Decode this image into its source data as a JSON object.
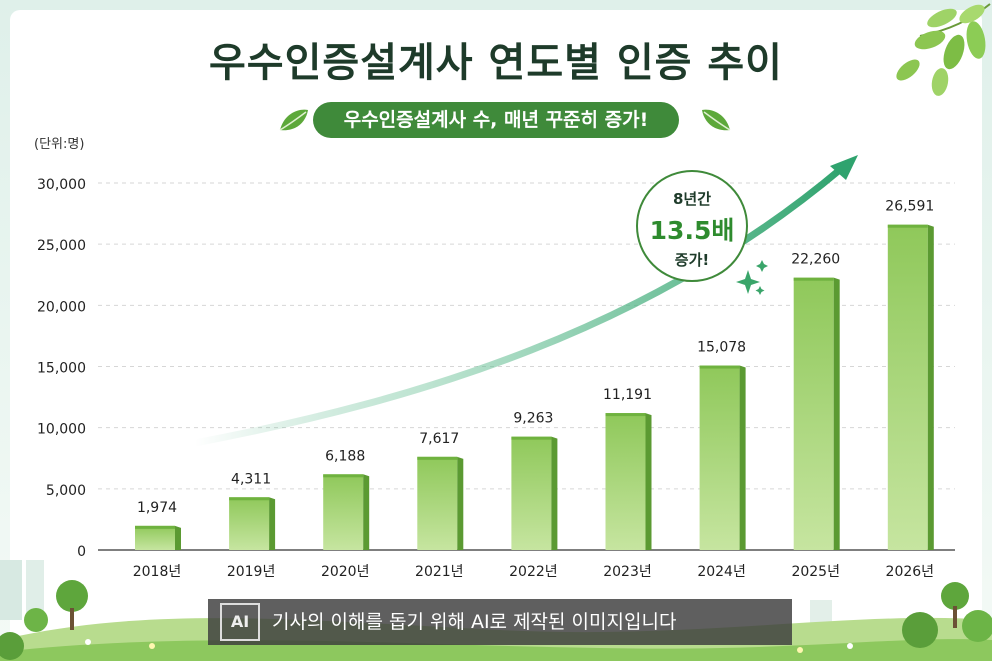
{
  "header": {
    "title": "우수인증설계사 연도별 인증 추이",
    "subtitle": "우수인증설계사 수, 매년 꾸준히 증가!"
  },
  "unit_label": "(단위:명)",
  "badge": {
    "line1": "8년간",
    "line2": "13.5배",
    "line3": "증가!"
  },
  "disclaimer": {
    "ai_mark": "AI",
    "text": "기사의 이해를 돕기 위해 AI로 제작된 이미지입니다"
  },
  "colors": {
    "bar_light": "#b6dc86",
    "bar_dark": "#6fb23f",
    "bar_side": "#5b9a32",
    "arrow": "#2fa36e",
    "title": "#1e3b2a",
    "pill": "#3f8a3a"
  },
  "chart_data": {
    "type": "bar",
    "categories": [
      "2018년",
      "2019년",
      "2020년",
      "2021년",
      "2022년",
      "2023년",
      "2024년",
      "2025년",
      "2026년"
    ],
    "values": [
      1974,
      4311,
      6188,
      7617,
      9263,
      11191,
      15078,
      22260,
      26591
    ],
    "value_labels": [
      "1,974",
      "4,311",
      "6,188",
      "7,617",
      "9,263",
      "11,191",
      "15,078",
      "22,260",
      "26,591"
    ],
    "yticks": [
      "0",
      "5,000",
      "10,000",
      "15,000",
      "20,000",
      "25,000",
      "30,000"
    ],
    "ylim": [
      0,
      30000
    ],
    "grid": true,
    "trend_arrow": true
  }
}
